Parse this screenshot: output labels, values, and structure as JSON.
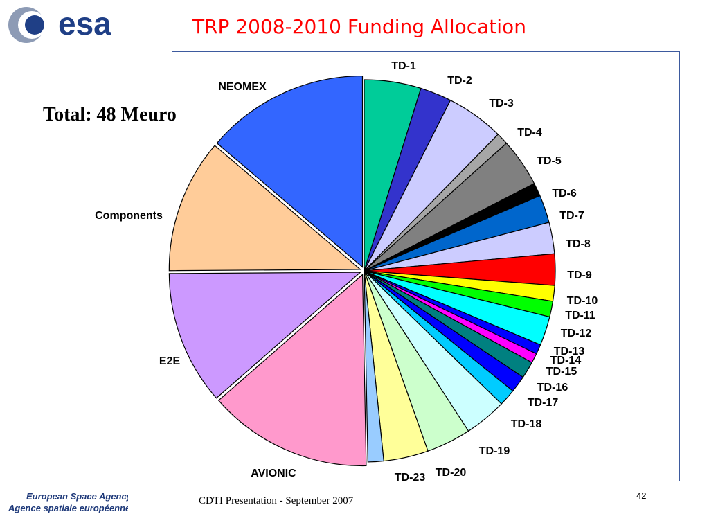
{
  "logo": {
    "text": "esa",
    "icon": "esa-logo"
  },
  "title": "TRP 2008-2010 Funding Allocation",
  "total_label": "Total: 48 Meuro",
  "footer": {
    "agency_en": "European Space Agency",
    "agency_fr": "Agence spatiale européenne",
    "presentation": "CDTI Presentation - September  2007",
    "page_number": "42"
  },
  "chart_data": {
    "type": "pie",
    "title": "TRP 2008-2010 Funding Allocation",
    "total": "Total: 48 Meuro",
    "start": "12 o'clock",
    "direction": "clockwise",
    "slices": [
      {
        "label": "TD-1",
        "value": 4.7,
        "color": "#00cc99"
      },
      {
        "label": "TD-2",
        "value": 2.6,
        "color": "#3333cc"
      },
      {
        "label": "TD-3",
        "value": 4.8,
        "color": "#ccccff"
      },
      {
        "label": "TD-4",
        "value": 1.0,
        "color": "#a6a6a6"
      },
      {
        "label": "TD-5",
        "value": 4.0,
        "color": "#808080"
      },
      {
        "label": "TD-6",
        "value": 1.1,
        "color": "#000000"
      },
      {
        "label": "TD-7",
        "value": 2.3,
        "color": "#0066cc"
      },
      {
        "label": "TD-8",
        "value": 2.6,
        "color": "#ccccff"
      },
      {
        "label": "TD-9",
        "value": 2.6,
        "color": "#ff0000"
      },
      {
        "label": "TD-10",
        "value": 1.3,
        "color": "#ffff00"
      },
      {
        "label": "TD-11",
        "value": 1.3,
        "color": "#00ff00"
      },
      {
        "label": "TD-12",
        "value": 2.4,
        "color": "#00ffff"
      },
      {
        "label": "TD-13",
        "value": 0.8,
        "color": "#0000ff"
      },
      {
        "label": "TD-14",
        "value": 0.8,
        "color": "#ff00ff"
      },
      {
        "label": "TD-15",
        "value": 1.4,
        "color": "#008080"
      },
      {
        "label": "TD-16",
        "value": 1.4,
        "color": "#0000ff"
      },
      {
        "label": "TD-17",
        "value": 1.4,
        "color": "#00ccff"
      },
      {
        "label": "TD-18",
        "value": 3.5,
        "color": "#ccffff"
      },
      {
        "label": "TD-19",
        "value": 3.7,
        "color": "#ccffcc"
      },
      {
        "label": "TD-20",
        "value": 3.7,
        "color": "#ffff99"
      },
      {
        "label": "TD-23",
        "value": 1.3,
        "color": "#99ccff"
      },
      {
        "label": "AVIONIC",
        "value": 13.6,
        "color": "#ff99cc",
        "exploded": true
      },
      {
        "label": "E2E",
        "value": 11.1,
        "color": "#cc99ff",
        "exploded": true
      },
      {
        "label": "Components",
        "value": 11.1,
        "color": "#ffcc99",
        "exploded": true
      },
      {
        "label": "NEOMEX",
        "value": 13.5,
        "color": "#3366ff",
        "exploded": true
      }
    ]
  }
}
